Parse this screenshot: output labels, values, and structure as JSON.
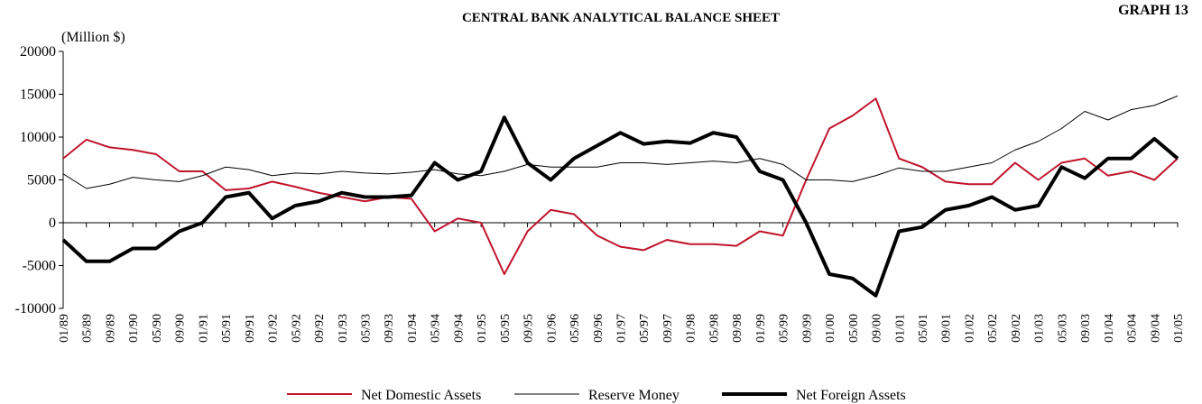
{
  "chart_data": {
    "type": "line",
    "title": "CENTRAL BANK ANALYTICAL BALANCE SHEET",
    "subtitle": "GRAPH 13",
    "y_label": "(Million $)",
    "categories": [
      "01/89",
      "05/89",
      "09/89",
      "01/90",
      "05/90",
      "09/90",
      "01/91",
      "05/91",
      "09/91",
      "01/92",
      "05/92",
      "09/92",
      "01/93",
      "05/93",
      "09/93",
      "01/94",
      "05/94",
      "09/94",
      "01/95",
      "05/95",
      "09/95",
      "01/96",
      "05/96",
      "09/96",
      "01/97",
      "05/97",
      "09/97",
      "01/98",
      "05/98",
      "09/98",
      "01/99",
      "05/99",
      "09/99",
      "01/00",
      "05/00",
      "09/00",
      "01/01",
      "05/01",
      "09/01",
      "01/02",
      "05/02",
      "09/02",
      "01/03",
      "05/03",
      "09/03",
      "01/04",
      "05/04",
      "09/04",
      "01/05"
    ],
    "series": [
      {
        "name": "Net Domestic Assets",
        "color": "#c0142c",
        "width": 2,
        "values": [
          7500,
          9700,
          8800,
          8500,
          8000,
          6000,
          6000,
          3800,
          4000,
          4800,
          4200,
          3500,
          3000,
          2500,
          3000,
          2800,
          -1000,
          500,
          0,
          -6000,
          -1000,
          1500,
          1000,
          -1500,
          -2800,
          -3200,
          -2000,
          -2500,
          -2500,
          -2700,
          -1000,
          -1500,
          5000,
          11000,
          12500,
          14500,
          7500,
          6500,
          4800,
          4500,
          4500,
          7000,
          5000,
          7000,
          7500,
          5500,
          6000,
          5000,
          7500
        ]
      },
      {
        "name": "Reserve Money",
        "color": "#000000",
        "width": 1,
        "values": [
          5700,
          4000,
          4500,
          5300,
          5000,
          4800,
          5500,
          6500,
          6200,
          5500,
          5800,
          5700,
          6000,
          5800,
          5700,
          5900,
          6200,
          5700,
          5500,
          6000,
          6800,
          6500,
          6500,
          6500,
          7000,
          7000,
          6800,
          7000,
          7200,
          7000,
          7500,
          6800,
          5000,
          5000,
          4800,
          5500,
          6400,
          6000,
          6000,
          6500,
          7000,
          8500,
          9500,
          11000,
          13000,
          12000,
          13200,
          13700,
          14800
        ]
      },
      {
        "name": "Net Foreign Assets",
        "color": "#000000",
        "width": 4,
        "values": [
          -2000,
          -4500,
          -4500,
          -3000,
          -3000,
          -1000,
          0,
          3000,
          3500,
          500,
          2000,
          2500,
          3500,
          3000,
          3000,
          3200,
          7000,
          5000,
          6000,
          12300,
          7000,
          5000,
          7500,
          9000,
          10500,
          9200,
          9500,
          9300,
          10500,
          10000,
          6000,
          5000,
          0,
          -6000,
          -6500,
          -8500,
          -1000,
          -500,
          1500,
          2000,
          3000,
          1500,
          2000,
          6500,
          5200,
          7500,
          7500,
          9800,
          7500
        ]
      }
    ],
    "ylim": [
      -10000,
      20000
    ],
    "yticks": [
      -10000,
      -5000,
      0,
      5000,
      10000,
      15000,
      20000
    ],
    "legend": "bottom"
  }
}
